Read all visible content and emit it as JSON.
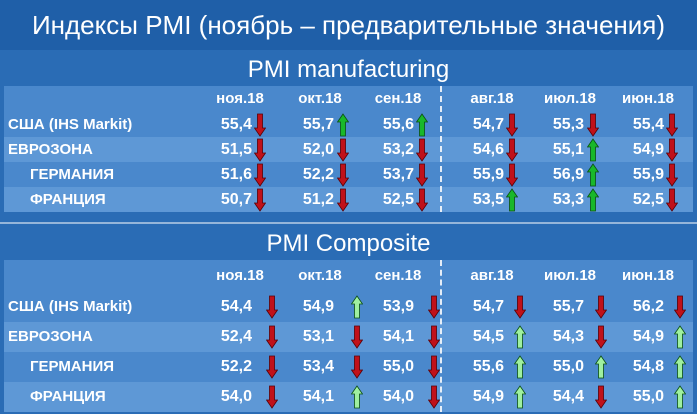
{
  "title": "Индексы PMI (ноябрь – предварительные значения)",
  "colors": {
    "up_strong": "#19b82a",
    "up_light": "#9ff0a0",
    "down": "#c0111a"
  },
  "manufacturing": {
    "header": "PMI manufacturing",
    "columns": [
      "ноя.18",
      "окт.18",
      "сен.18",
      "авг.18",
      "июл.18",
      "июн.18"
    ],
    "rows": [
      {
        "label": "США (IHS Markit)",
        "cells": [
          {
            "v": "55,4",
            "d": "down"
          },
          {
            "v": "55,7",
            "d": "up"
          },
          {
            "v": "55,6",
            "d": "up"
          },
          {
            "v": "54,7",
            "d": "down"
          },
          {
            "v": "55,3",
            "d": "down"
          },
          {
            "v": "55,4",
            "d": "down"
          }
        ]
      },
      {
        "label": "ЕВРОЗОНА",
        "cells": [
          {
            "v": "51,5",
            "d": "down"
          },
          {
            "v": "52,0",
            "d": "down"
          },
          {
            "v": "53,2",
            "d": "down"
          },
          {
            "v": "54,6",
            "d": "down"
          },
          {
            "v": "55,1",
            "d": "up"
          },
          {
            "v": "54,9",
            "d": "down"
          }
        ]
      },
      {
        "label": "ГЕРМАНИЯ",
        "cells": [
          {
            "v": "51,6",
            "d": "down"
          },
          {
            "v": "52,2",
            "d": "down"
          },
          {
            "v": "53,7",
            "d": "down"
          },
          {
            "v": "55,9",
            "d": "down"
          },
          {
            "v": "56,9",
            "d": "up"
          },
          {
            "v": "55,9",
            "d": "down"
          }
        ]
      },
      {
        "label": "ФРАНЦИЯ",
        "cells": [
          {
            "v": "50,7",
            "d": "down"
          },
          {
            "v": "51,2",
            "d": "down"
          },
          {
            "v": "52,5",
            "d": "down"
          },
          {
            "v": "53,5",
            "d": "up"
          },
          {
            "v": "53,3",
            "d": "up"
          },
          {
            "v": "52,5",
            "d": "down"
          }
        ]
      }
    ]
  },
  "composite": {
    "header": "PMI Composite",
    "columns": [
      "ноя.18",
      "окт.18",
      "сен.18",
      "авг.18",
      "июл.18",
      "июн.18"
    ],
    "rows": [
      {
        "label": "США (IHS Markit)",
        "cells": [
          {
            "v": "54,4",
            "d": "down"
          },
          {
            "v": "54,9",
            "d": "up"
          },
          {
            "v": "53,9",
            "d": "down"
          },
          {
            "v": "54,7",
            "d": "down"
          },
          {
            "v": "55,7",
            "d": "down"
          },
          {
            "v": "56,2",
            "d": "down"
          }
        ]
      },
      {
        "label": "ЕВРОЗОНА",
        "cells": [
          {
            "v": "52,4",
            "d": "down"
          },
          {
            "v": "53,1",
            "d": "down"
          },
          {
            "v": "54,1",
            "d": "down"
          },
          {
            "v": "54,5",
            "d": "up"
          },
          {
            "v": "54,3",
            "d": "down"
          },
          {
            "v": "54,9",
            "d": "up"
          }
        ]
      },
      {
        "label": "ГЕРМАНИЯ",
        "cells": [
          {
            "v": "52,2",
            "d": "down"
          },
          {
            "v": "53,4",
            "d": "down"
          },
          {
            "v": "55,0",
            "d": "down"
          },
          {
            "v": "55,6",
            "d": "up"
          },
          {
            "v": "55,0",
            "d": "up"
          },
          {
            "v": "54,8",
            "d": "up"
          }
        ]
      },
      {
        "label": "ФРАНЦИЯ",
        "cells": [
          {
            "v": "54,0",
            "d": "down"
          },
          {
            "v": "54,1",
            "d": "up"
          },
          {
            "v": "54,0",
            "d": "down"
          },
          {
            "v": "54,9",
            "d": "up"
          },
          {
            "v": "54,4",
            "d": "down"
          },
          {
            "v": "55,0",
            "d": "up"
          }
        ]
      }
    ]
  }
}
